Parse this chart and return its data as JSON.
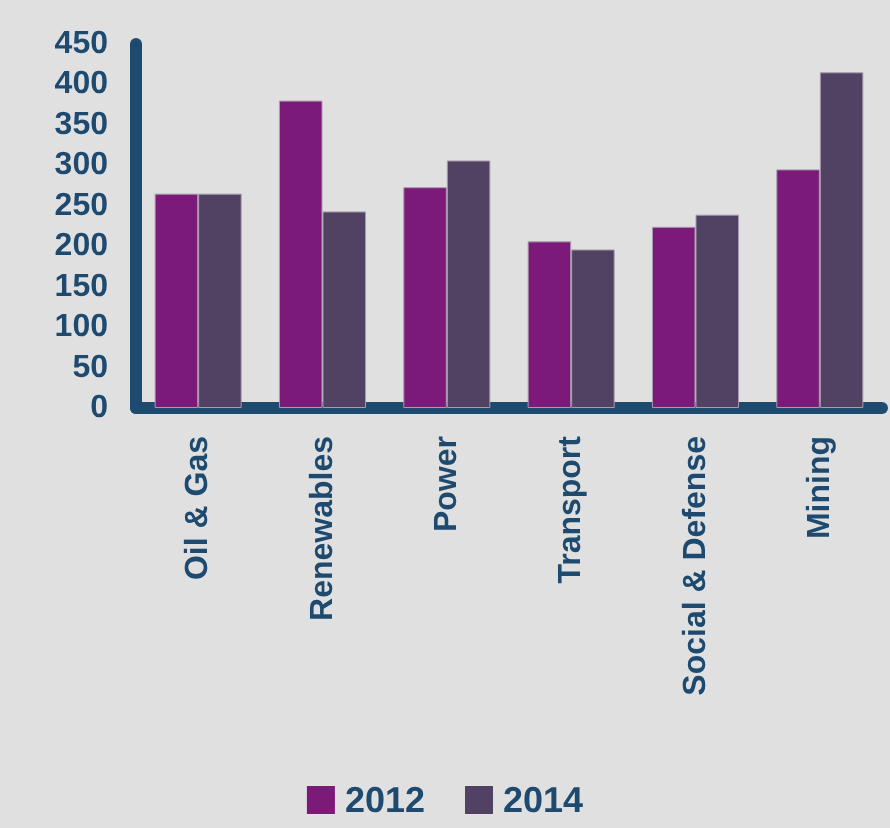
{
  "chart_data": {
    "type": "bar",
    "categories": [
      "Oil & Gas",
      "Renewables",
      "Power",
      "Transport",
      "Social & Defense",
      "Mining"
    ],
    "series": [
      {
        "name": "2012",
        "color": "#7b1a78",
        "values": [
          265,
          380,
          273,
          206,
          224,
          295
        ]
      },
      {
        "name": "2014",
        "color": "#514263",
        "values": [
          265,
          243,
          306,
          196,
          239,
          415
        ]
      }
    ],
    "ylim": [
      0,
      450
    ],
    "yticks": [
      0,
      50,
      100,
      150,
      200,
      250,
      300,
      350,
      400,
      450
    ],
    "legend": "bottom"
  }
}
